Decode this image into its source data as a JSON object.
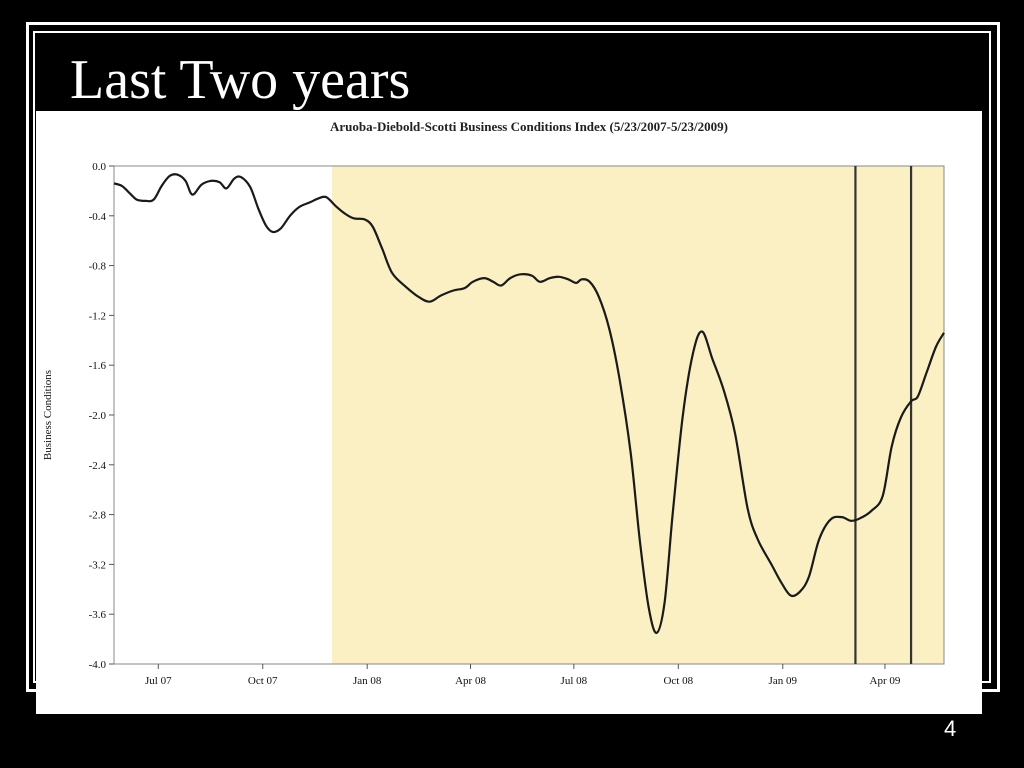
{
  "slide": {
    "title": "Last Two years",
    "page_number": "4"
  },
  "chart_data": {
    "type": "line",
    "title": "Aruoba-Diebold-Scotti Business Conditions Index (5/23/2007-5/23/2009)",
    "xlabel": "",
    "ylabel": "Business Conditions",
    "ylim": [
      -4.0,
      0.0
    ],
    "xlim": [
      "2007-05-23",
      "2009-05-23"
    ],
    "y_ticks": [
      "0.0",
      "-0.4",
      "-0.8",
      "-1.2",
      "-1.6",
      "-2.0",
      "-2.4",
      "-2.8",
      "-3.2",
      "-3.6",
      "-4.0"
    ],
    "x_ticks": [
      {
        "label": "Jul 07",
        "date": "2007-07-01"
      },
      {
        "label": "Oct 07",
        "date": "2007-10-01"
      },
      {
        "label": "Jan 08",
        "date": "2008-01-01"
      },
      {
        "label": "Apr 08",
        "date": "2008-04-01"
      },
      {
        "label": "Jul 08",
        "date": "2008-07-01"
      },
      {
        "label": "Oct 08",
        "date": "2008-10-01"
      },
      {
        "label": "Jan 09",
        "date": "2009-01-01"
      },
      {
        "label": "Apr 09",
        "date": "2009-04-01"
      }
    ],
    "shaded_region": {
      "start": "2007-12-01",
      "end": "2009-05-23",
      "color": "#faf0c3"
    },
    "vertical_lines": [
      "2009-03-06",
      "2009-04-24"
    ],
    "series": [
      {
        "color": "#1a1a1a",
        "points": [
          [
            "2007-05-23",
            -0.14
          ],
          [
            "2007-05-30",
            -0.16
          ],
          [
            "2007-06-06",
            -0.22
          ],
          [
            "2007-06-12",
            -0.27
          ],
          [
            "2007-06-20",
            -0.28
          ],
          [
            "2007-06-27",
            -0.27
          ],
          [
            "2007-07-04",
            -0.16
          ],
          [
            "2007-07-11",
            -0.08
          ],
          [
            "2007-07-18",
            -0.07
          ],
          [
            "2007-07-25",
            -0.12
          ],
          [
            "2007-07-31",
            -0.23
          ],
          [
            "2007-08-08",
            -0.15
          ],
          [
            "2007-08-16",
            -0.12
          ],
          [
            "2007-08-24",
            -0.13
          ],
          [
            "2007-08-30",
            -0.18
          ],
          [
            "2007-09-06",
            -0.1
          ],
          [
            "2007-09-12",
            -0.09
          ],
          [
            "2007-09-20",
            -0.17
          ],
          [
            "2007-09-27",
            -0.34
          ],
          [
            "2007-10-04",
            -0.48
          ],
          [
            "2007-10-10",
            -0.53
          ],
          [
            "2007-10-17",
            -0.5
          ],
          [
            "2007-10-25",
            -0.4
          ],
          [
            "2007-11-02",
            -0.33
          ],
          [
            "2007-11-12",
            -0.29
          ],
          [
            "2007-11-19",
            -0.26
          ],
          [
            "2007-11-26",
            -0.25
          ],
          [
            "2007-12-04",
            -0.32
          ],
          [
            "2007-12-12",
            -0.38
          ],
          [
            "2007-12-20",
            -0.42
          ],
          [
            "2007-12-30",
            -0.43
          ],
          [
            "2008-01-06",
            -0.49
          ],
          [
            "2008-01-14",
            -0.66
          ],
          [
            "2008-01-23",
            -0.86
          ],
          [
            "2008-02-04",
            -0.97
          ],
          [
            "2008-02-15",
            -1.05
          ],
          [
            "2008-02-25",
            -1.09
          ],
          [
            "2008-03-06",
            -1.04
          ],
          [
            "2008-03-17",
            -1.0
          ],
          [
            "2008-03-27",
            -0.98
          ],
          [
            "2008-04-03",
            -0.93
          ],
          [
            "2008-04-13",
            -0.9
          ],
          [
            "2008-04-21",
            -0.93
          ],
          [
            "2008-04-28",
            -0.96
          ],
          [
            "2008-05-06",
            -0.9
          ],
          [
            "2008-05-15",
            -0.87
          ],
          [
            "2008-05-25",
            -0.88
          ],
          [
            "2008-06-01",
            -0.93
          ],
          [
            "2008-06-10",
            -0.9
          ],
          [
            "2008-06-18",
            -0.89
          ],
          [
            "2008-06-26",
            -0.91
          ],
          [
            "2008-07-03",
            -0.94
          ],
          [
            "2008-07-08",
            -0.91
          ],
          [
            "2008-07-15",
            -0.93
          ],
          [
            "2008-07-23",
            -1.05
          ],
          [
            "2008-08-01",
            -1.3
          ],
          [
            "2008-08-10",
            -1.7
          ],
          [
            "2008-08-20",
            -2.3
          ],
          [
            "2008-08-28",
            -3.0
          ],
          [
            "2008-09-05",
            -3.55
          ],
          [
            "2008-09-12",
            -3.75
          ],
          [
            "2008-09-19",
            -3.5
          ],
          [
            "2008-09-26",
            -2.8
          ],
          [
            "2008-10-05",
            -2.0
          ],
          [
            "2008-10-14",
            -1.5
          ],
          [
            "2008-10-22",
            -1.33
          ],
          [
            "2008-10-31",
            -1.55
          ],
          [
            "2008-11-10",
            -1.8
          ],
          [
            "2008-11-20",
            -2.15
          ],
          [
            "2008-12-01",
            -2.75
          ],
          [
            "2008-12-10",
            -3.0
          ],
          [
            "2008-12-22",
            -3.2
          ],
          [
            "2008-12-31",
            -3.35
          ],
          [
            "2009-01-08",
            -3.45
          ],
          [
            "2009-01-16",
            -3.42
          ],
          [
            "2009-01-24",
            -3.3
          ],
          [
            "2009-02-02",
            -3.0
          ],
          [
            "2009-02-12",
            -2.84
          ],
          [
            "2009-02-22",
            -2.82
          ],
          [
            "2009-03-02",
            -2.85
          ],
          [
            "2009-03-10",
            -2.83
          ],
          [
            "2009-03-20",
            -2.77
          ],
          [
            "2009-03-30",
            -2.65
          ],
          [
            "2009-04-07",
            -2.25
          ],
          [
            "2009-04-15",
            -2.02
          ],
          [
            "2009-04-24",
            -1.89
          ],
          [
            "2009-04-30",
            -1.85
          ],
          [
            "2009-05-08",
            -1.65
          ],
          [
            "2009-05-16",
            -1.45
          ],
          [
            "2009-05-23",
            -1.34
          ]
        ]
      }
    ]
  }
}
